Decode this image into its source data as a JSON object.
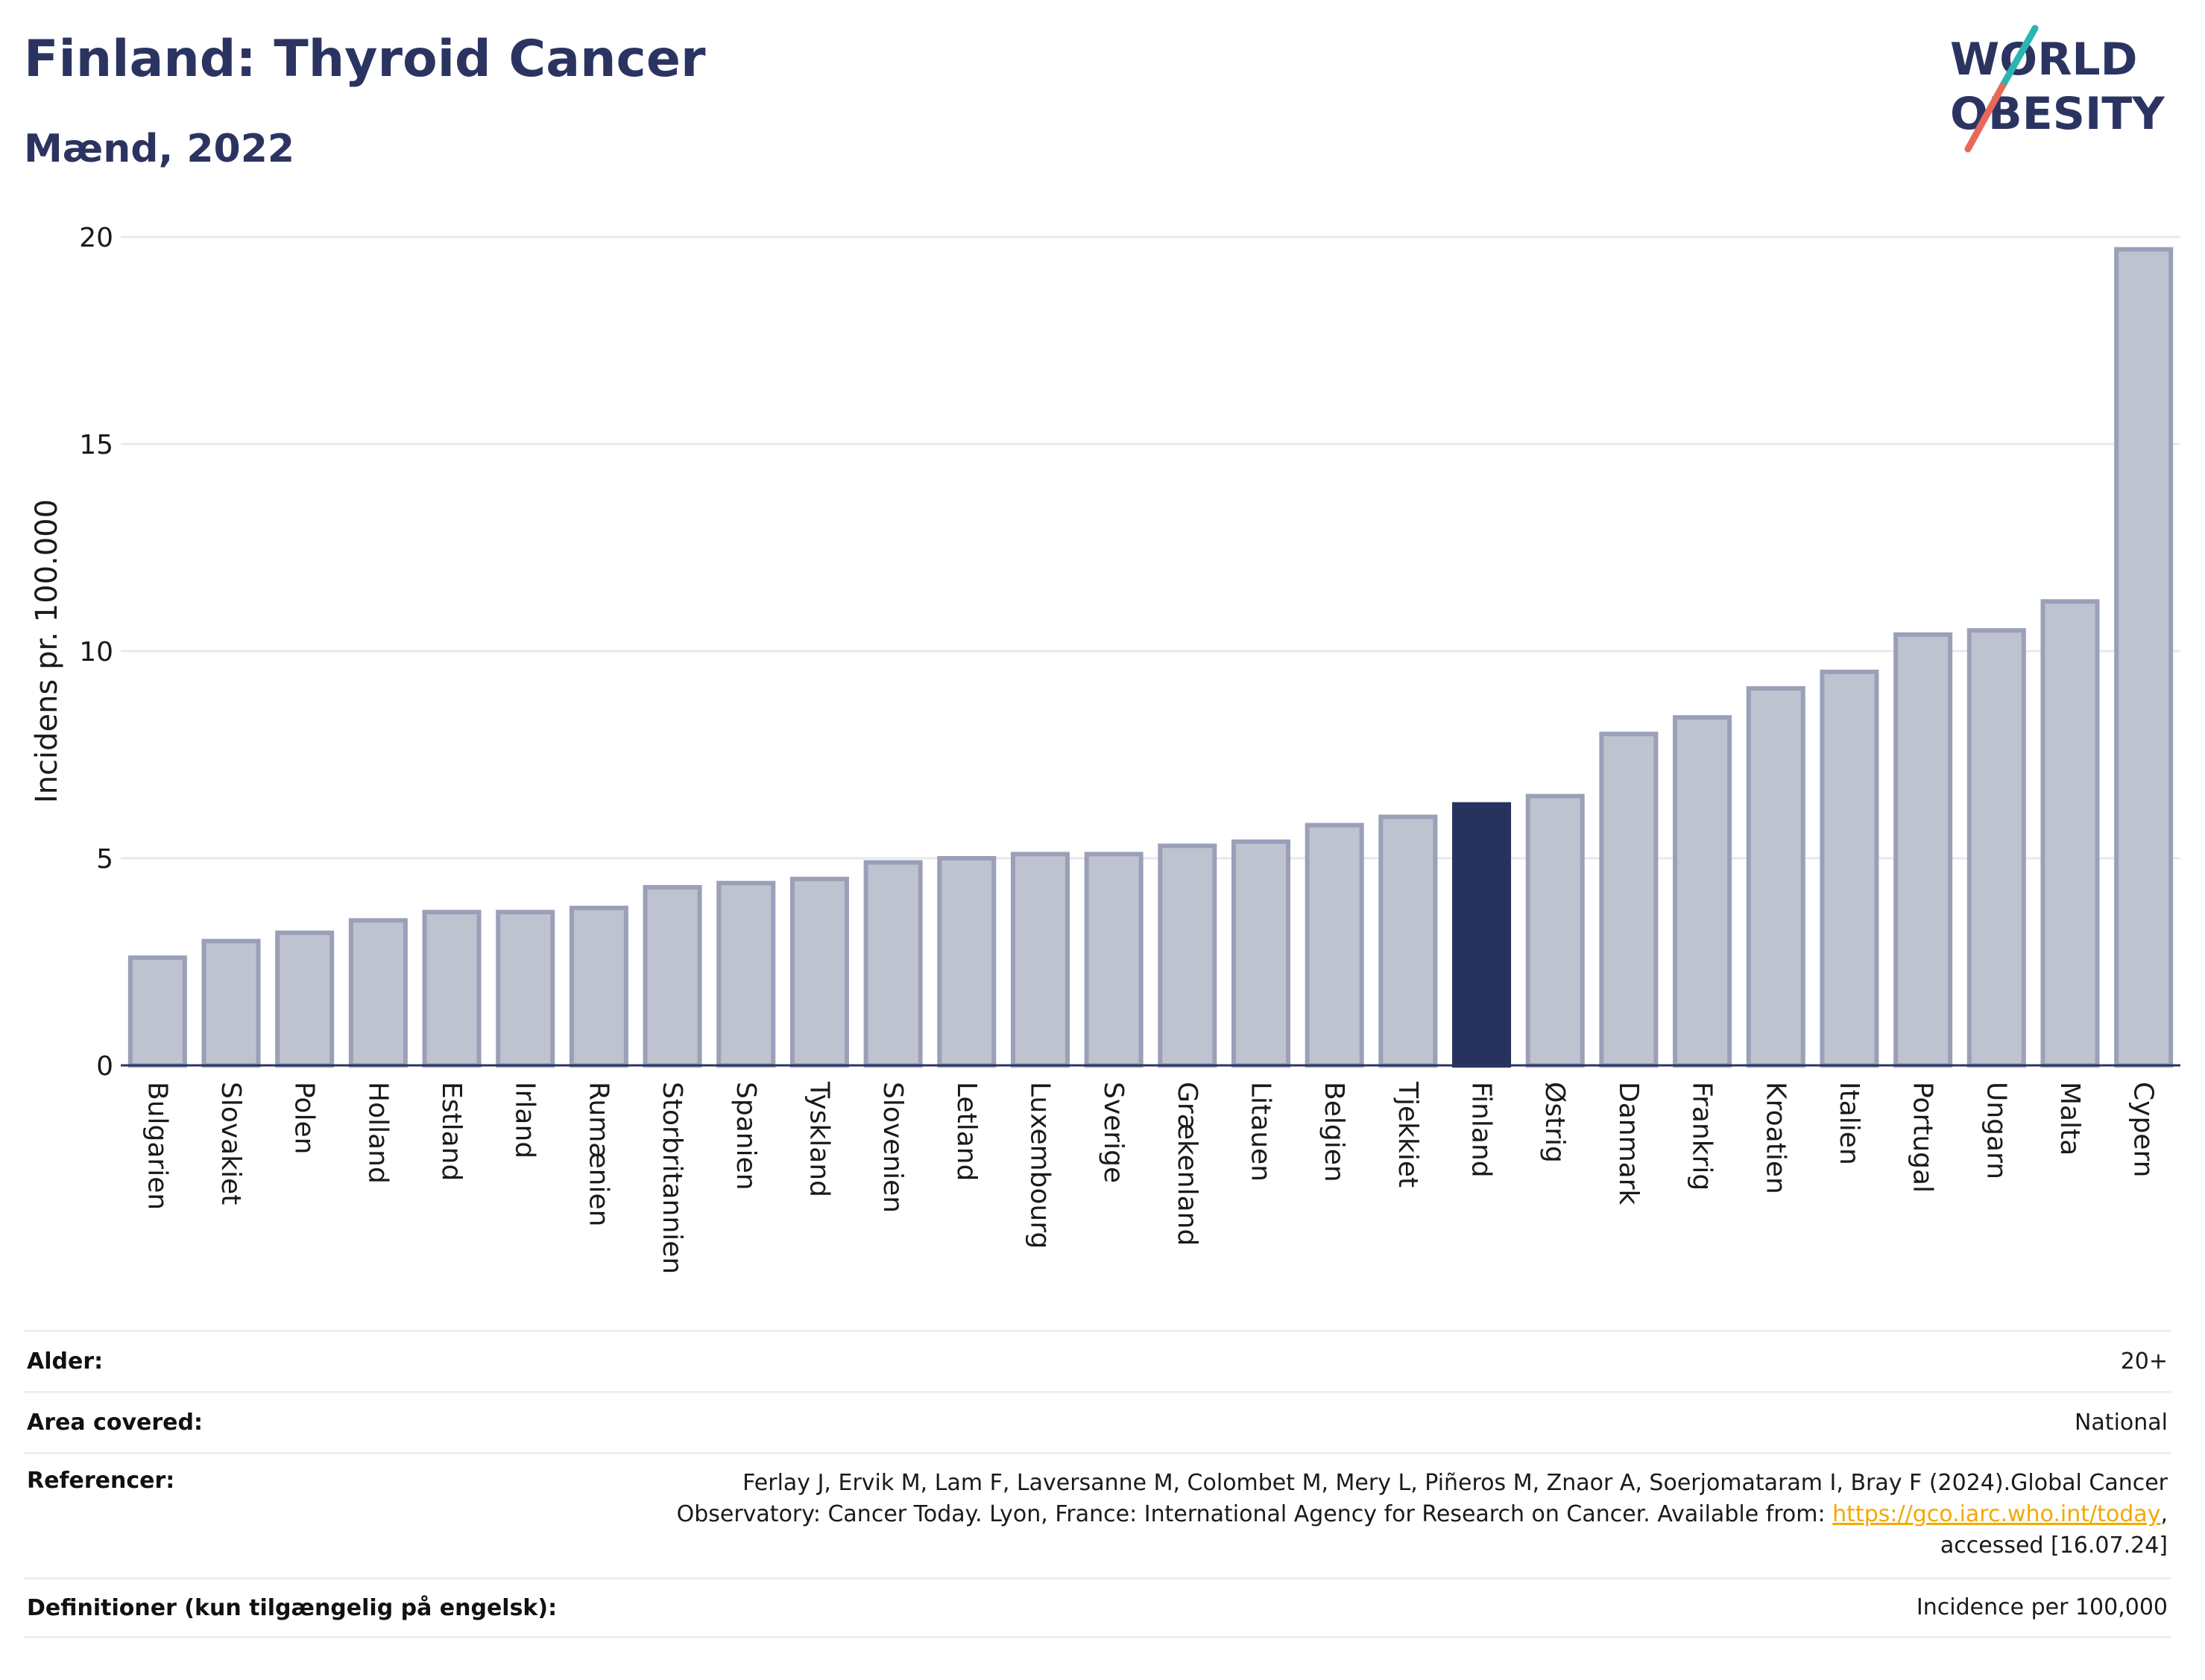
{
  "header": {
    "title": "Finland: Thyroid Cancer",
    "subtitle": "Mænd, 2022"
  },
  "logo": {
    "line1": "WORLD",
    "line2": "OBESITY",
    "colors": {
      "text": "#2b3461",
      "slash_teal": "#2bb5b0",
      "slash_coral": "#e8685a"
    }
  },
  "colors": {
    "bar": "#bfc3d0",
    "bar_stroke": "#9aa0b8",
    "highlight": "#28325f",
    "grid": "#e8e9ee",
    "axis": "#2b3461"
  },
  "chart_data": {
    "type": "bar",
    "title": "Finland: Thyroid Cancer",
    "subtitle": "Mænd, 2022",
    "ylabel": "Incidens pr. 100.000",
    "xlabel": "",
    "ylim": [
      0,
      20
    ],
    "yticks": [
      0,
      5,
      10,
      15,
      20
    ],
    "grid": true,
    "highlight": "Finland",
    "categories": [
      "Bulgarien",
      "Slovakiet",
      "Polen",
      "Holland",
      "Estland",
      "Irland",
      "Rumænien",
      "Storbritannien",
      "Spanien",
      "Tyskland",
      "Slovenien",
      "Letland",
      "Luxembourg",
      "Sverige",
      "Grækenland",
      "Litauen",
      "Belgien",
      "Tjekkiet",
      "Finland",
      "Østrig",
      "Danmark",
      "Frankrig",
      "Kroatien",
      "Italien",
      "Portugal",
      "Ungarn",
      "Malta",
      "Cypern"
    ],
    "values": [
      2.6,
      3.0,
      3.2,
      3.5,
      3.7,
      3.7,
      3.8,
      4.3,
      4.4,
      4.5,
      4.9,
      5.0,
      5.1,
      5.1,
      5.3,
      5.4,
      5.8,
      6.0,
      6.3,
      6.5,
      8.0,
      8.4,
      9.1,
      9.5,
      10.4,
      10.5,
      11.2,
      19.7
    ]
  },
  "info": {
    "age_label": "Alder:",
    "age_value": "20+",
    "area_label": "Area covered:",
    "area_value": "National",
    "ref_label": "Referencer:",
    "ref_text_1": "Ferlay J, Ervik M, Lam F, Laversanne M, Colombet M, Mery L, Piñeros M, Znaor A, Soerjomataram I, Bray F (2024).Global Cancer Observatory: Cancer Today. Lyon, France: International Agency for Research on Cancer. Available from: ",
    "ref_link": "https://gco.iarc.who.int/today",
    "ref_text_2": ", accessed [16.07.24]",
    "def_label": "Definitioner (kun tilgængelig på engelsk):",
    "def_value": "Incidence per 100,000"
  }
}
